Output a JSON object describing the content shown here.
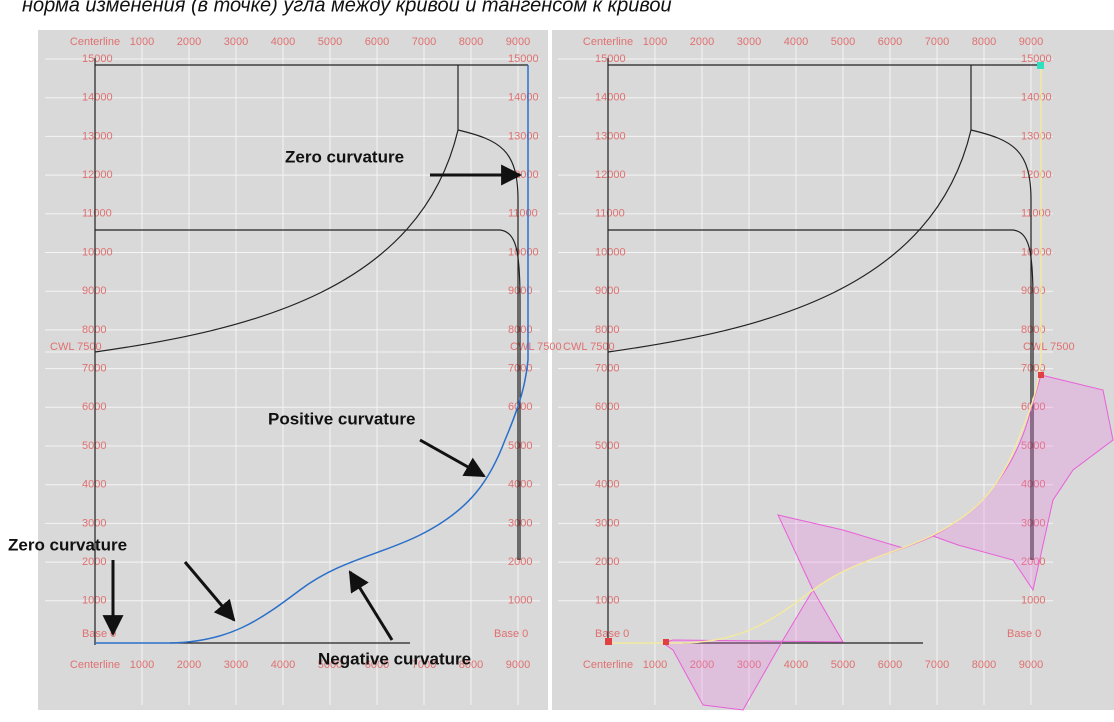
{
  "caption": "норма изменения (в точке) угла между кривой и тангенсом к кривой",
  "panels": [
    {
      "x_labels": [
        "Centerline",
        "1000",
        "2000",
        "3000",
        "4000",
        "5000",
        "6000",
        "7000",
        "8000",
        "9000"
      ],
      "y_labels": [
        "15000",
        "14000",
        "13000",
        "12000",
        "11000",
        "10000",
        "9000",
        "8000",
        "7000",
        "6000",
        "5000",
        "4000",
        "3000",
        "2000",
        "1000"
      ],
      "base_label": "Base 0",
      "cwl_label": "CWL 7500"
    },
    {
      "x_labels": [
        "Centerline",
        "1000",
        "2000",
        "3000",
        "4000",
        "5000",
        "6000",
        "7000",
        "8000",
        "9000"
      ],
      "y_labels": [
        "15000",
        "14000",
        "13000",
        "12000",
        "11000",
        "10000",
        "9000",
        "8000",
        "7000",
        "6000",
        "5000",
        "4000",
        "3000",
        "2000",
        "1000"
      ],
      "base_label": "Base 0",
      "cwl_label": "CWL 7500"
    }
  ],
  "annotations": {
    "zero_top": "Zero curvature",
    "positive": "Positive curvature",
    "zero_bottom": "Zero curvature",
    "negative": "Negative curvature"
  }
}
